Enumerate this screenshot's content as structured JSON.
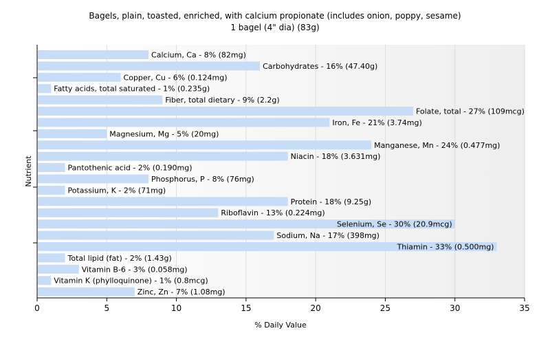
{
  "chart_data": {
    "type": "bar",
    "orientation": "horizontal",
    "title": "Bagels, plain, toasted, enriched, with calcium propionate (includes onion, poppy, sesame)",
    "subtitle": "1 bagel (4\" dia) (83g)",
    "xlabel": "% Daily Value",
    "ylabel": "Nutrient",
    "xlim": [
      0,
      35
    ],
    "xticks": [
      0,
      5,
      10,
      15,
      20,
      25,
      30,
      35
    ],
    "grid": true,
    "bar_color": "#c6dcf7",
    "categories": [
      "Calcium, Ca",
      "Carbohydrates",
      "Copper, Cu",
      "Fatty acids, total saturated",
      "Fiber, total dietary",
      "Folate, total",
      "Iron, Fe",
      "Magnesium, Mg",
      "Manganese, Mn",
      "Niacin",
      "Pantothenic acid",
      "Phosphorus, P",
      "Potassium, K",
      "Protein",
      "Riboflavin",
      "Selenium, Se",
      "Sodium, Na",
      "Thiamin",
      "Total lipid (fat)",
      "Vitamin B-6",
      "Vitamin K (phylloquinone)",
      "Zinc, Zn"
    ],
    "values": [
      8,
      16,
      6,
      1,
      9,
      27,
      21,
      5,
      24,
      18,
      2,
      8,
      2,
      18,
      13,
      30,
      17,
      33,
      2,
      3,
      1,
      7
    ],
    "labels": [
      "Calcium, Ca - 8% (82mg)",
      "Carbohydrates - 16% (47.40g)",
      "Copper, Cu - 6% (0.124mg)",
      "Fatty acids, total saturated - 1% (0.235g)",
      "Fiber, total dietary - 9% (2.2g)",
      "Folate, total - 27% (109mcg)",
      "Iron, Fe - 21% (3.74mg)",
      "Magnesium, Mg - 5% (20mg)",
      "Manganese, Mn - 24% (0.477mg)",
      "Niacin - 18% (3.631mg)",
      "Pantothenic acid - 2% (0.190mg)",
      "Phosphorus, P - 8% (76mg)",
      "Potassium, K - 2% (71mg)",
      "Protein - 18% (9.25g)",
      "Riboflavin - 13% (0.224mg)",
      "Selenium, Se - 30% (20.9mcg)",
      "Sodium, Na - 17% (398mg)",
      "Thiamin - 33% (0.500mg)",
      "Total lipid (fat) - 2% (1.43g)",
      "Vitamin B-6 - 3% (0.058mg)",
      "Vitamin K (phylloquinone) - 1% (0.8mcg)",
      "Zinc, Zn - 7% (1.08mg)"
    ]
  }
}
